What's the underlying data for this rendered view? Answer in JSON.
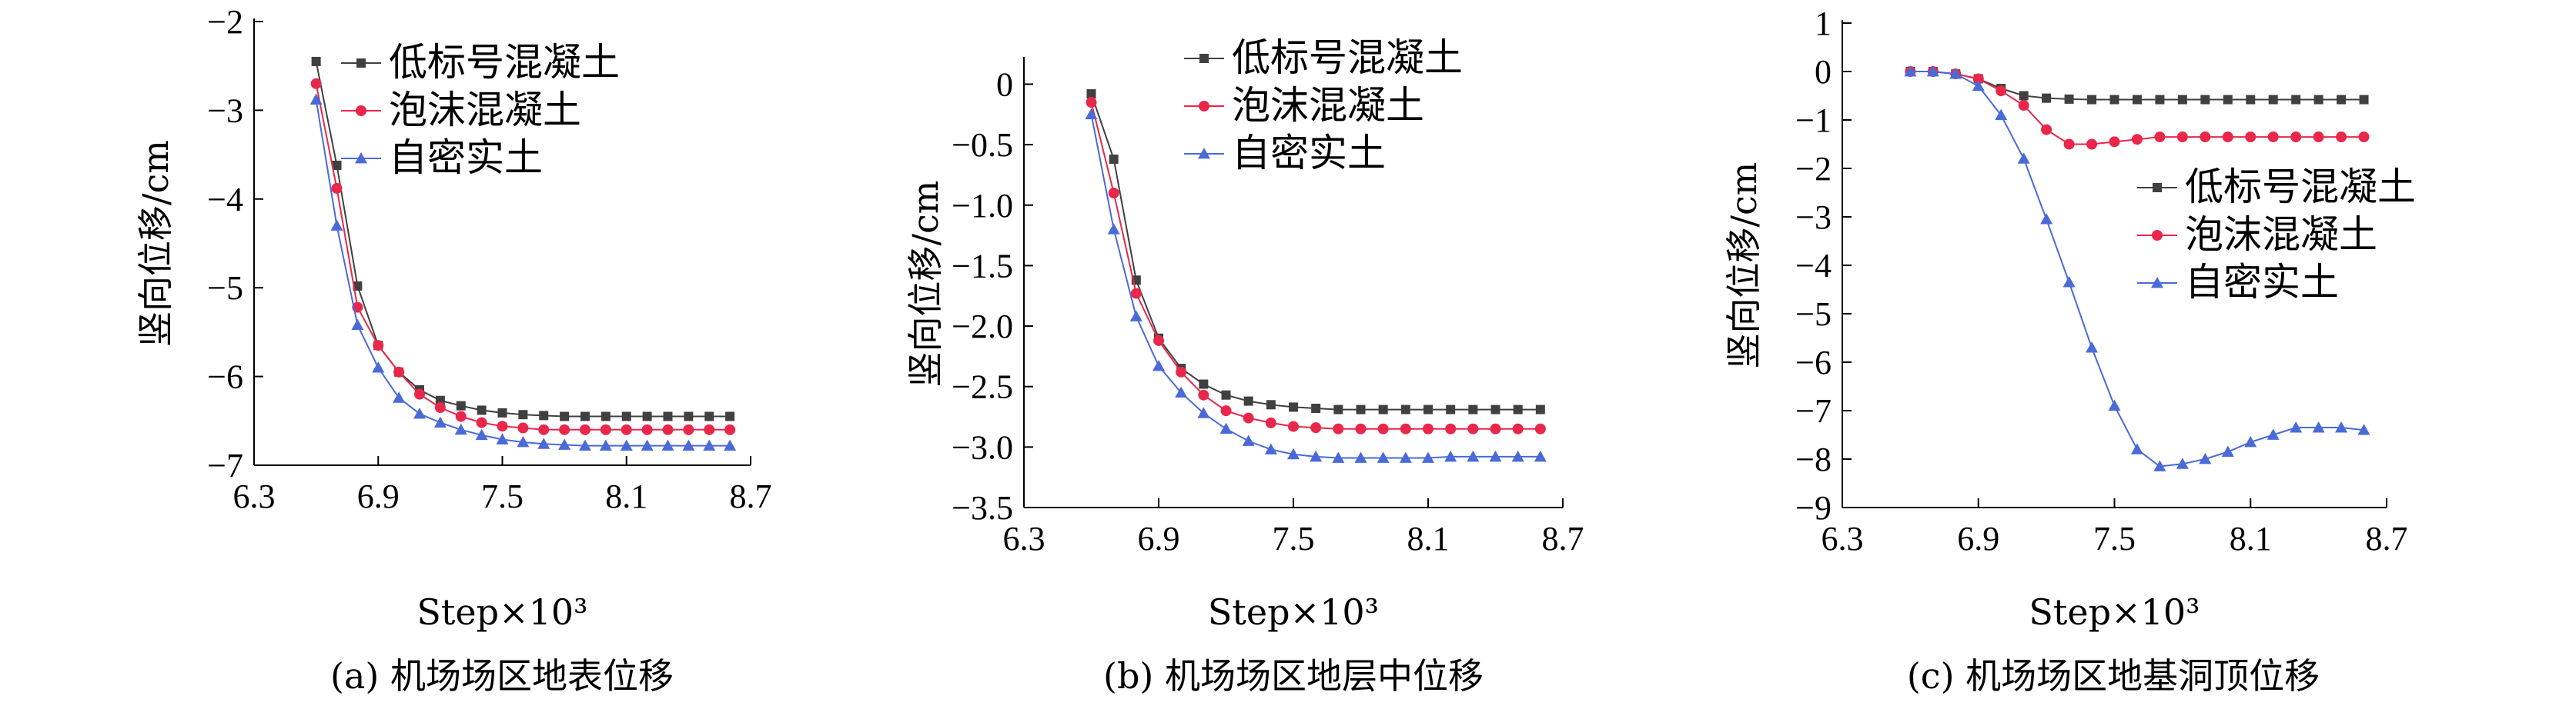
{
  "colors": {
    "series": [
      "#404040",
      "#e8274b",
      "#4a6ad8"
    ],
    "axis": "#000000"
  },
  "chart_data": [
    {
      "type": "line",
      "caption": "(a) 机场场区地表位移",
      "xlabel": "Step×10³",
      "ylabel": "竖向位移/cm",
      "xlim": [
        6.3,
        8.7
      ],
      "ylim": [
        -7,
        -2
      ],
      "xticks": [
        "6.3",
        "6.9",
        "7.5",
        "8.1",
        "8.7"
      ],
      "yticks": [
        "−2",
        "−3",
        "−4",
        "−5",
        "−6",
        "−7"
      ],
      "legend_position": "top-right",
      "series": [
        {
          "name": "低标号混凝土",
          "marker": "square",
          "x": [
            6.6,
            6.7,
            6.8,
            6.9,
            7.0,
            7.1,
            7.2,
            7.3,
            7.4,
            7.5,
            7.6,
            7.7,
            7.8,
            7.9,
            8.0,
            8.1,
            8.2,
            8.3,
            8.4,
            8.5,
            8.6
          ],
          "y": [
            -2.45,
            -3.62,
            -4.98,
            -5.65,
            -5.95,
            -6.15,
            -6.27,
            -6.33,
            -6.38,
            -6.41,
            -6.43,
            -6.44,
            -6.45,
            -6.45,
            -6.45,
            -6.45,
            -6.45,
            -6.45,
            -6.45,
            -6.45,
            -6.45
          ]
        },
        {
          "name": "泡沫混凝土",
          "marker": "circle",
          "x": [
            6.6,
            6.7,
            6.8,
            6.9,
            7.0,
            7.1,
            7.2,
            7.3,
            7.4,
            7.5,
            7.6,
            7.7,
            7.8,
            7.9,
            8.0,
            8.1,
            8.2,
            8.3,
            8.4,
            8.5,
            8.6
          ],
          "y": [
            -2.7,
            -3.88,
            -5.22,
            -5.65,
            -5.95,
            -6.2,
            -6.35,
            -6.45,
            -6.52,
            -6.56,
            -6.58,
            -6.6,
            -6.6,
            -6.6,
            -6.6,
            -6.6,
            -6.6,
            -6.6,
            -6.6,
            -6.6,
            -6.6
          ]
        },
        {
          "name": "自密实土",
          "marker": "triangle",
          "x": [
            6.6,
            6.7,
            6.8,
            6.9,
            7.0,
            7.1,
            7.2,
            7.3,
            7.4,
            7.5,
            7.6,
            7.7,
            7.8,
            7.9,
            8.0,
            8.1,
            8.2,
            8.3,
            8.4,
            8.5,
            8.6
          ],
          "y": [
            -2.88,
            -4.3,
            -5.42,
            -5.9,
            -6.24,
            -6.42,
            -6.52,
            -6.6,
            -6.66,
            -6.71,
            -6.74,
            -6.76,
            -6.77,
            -6.78,
            -6.78,
            -6.78,
            -6.78,
            -6.78,
            -6.78,
            -6.78,
            -6.78
          ]
        }
      ]
    },
    {
      "type": "line",
      "caption": "(b) 机场场区地层中位移",
      "xlabel": "Step×10³",
      "ylabel": "竖向位移/cm",
      "xlim": [
        6.3,
        8.7
      ],
      "ylim": [
        -3.5,
        0.2
      ],
      "xticks": [
        "6.3",
        "6.9",
        "7.5",
        "8.1",
        "8.7"
      ],
      "yticks": [
        "0",
        "−0.5",
        "−1.0",
        "−1.5",
        "−2.0",
        "−2.5",
        "−3.0",
        "−3.5"
      ],
      "legend_position": "top-right",
      "series": [
        {
          "name": "低标号混凝土",
          "marker": "square",
          "x": [
            6.6,
            6.7,
            6.8,
            6.9,
            7.0,
            7.1,
            7.2,
            7.3,
            7.4,
            7.5,
            7.6,
            7.7,
            7.8,
            7.9,
            8.0,
            8.1,
            8.2,
            8.3,
            8.4,
            8.5,
            8.6
          ],
          "y": [
            -0.08,
            -0.62,
            -1.62,
            -2.1,
            -2.35,
            -2.48,
            -2.57,
            -2.62,
            -2.65,
            -2.67,
            -2.68,
            -2.69,
            -2.69,
            -2.69,
            -2.69,
            -2.69,
            -2.69,
            -2.69,
            -2.69,
            -2.69,
            -2.69
          ]
        },
        {
          "name": "泡沫混凝土",
          "marker": "circle",
          "x": [
            6.6,
            6.7,
            6.8,
            6.9,
            7.0,
            7.1,
            7.2,
            7.3,
            7.4,
            7.5,
            7.6,
            7.7,
            7.8,
            7.9,
            8.0,
            8.1,
            8.2,
            8.3,
            8.4,
            8.5,
            8.6
          ],
          "y": [
            -0.15,
            -0.9,
            -1.73,
            -2.12,
            -2.38,
            -2.57,
            -2.7,
            -2.76,
            -2.8,
            -2.83,
            -2.84,
            -2.85,
            -2.85,
            -2.85,
            -2.85,
            -2.85,
            -2.85,
            -2.85,
            -2.85,
            -2.85,
            -2.85
          ]
        },
        {
          "name": "自密实土",
          "marker": "triangle",
          "x": [
            6.6,
            6.7,
            6.8,
            6.9,
            7.0,
            7.1,
            7.2,
            7.3,
            7.4,
            7.5,
            7.6,
            7.7,
            7.8,
            7.9,
            8.0,
            8.1,
            8.2,
            8.3,
            8.4,
            8.5,
            8.6
          ],
          "y": [
            -0.25,
            -1.2,
            -1.92,
            -2.33,
            -2.55,
            -2.72,
            -2.85,
            -2.95,
            -3.02,
            -3.06,
            -3.08,
            -3.09,
            -3.09,
            -3.09,
            -3.09,
            -3.09,
            -3.08,
            -3.08,
            -3.08,
            -3.08,
            -3.08
          ]
        }
      ]
    },
    {
      "type": "line",
      "caption": "(c) 机场场区地基洞顶位移",
      "xlabel": "Step×10³",
      "ylabel": "竖向位移/cm",
      "xlim": [
        6.3,
        8.7
      ],
      "ylim": [
        -9,
        1
      ],
      "xticks": [
        "6.3",
        "6.9",
        "7.5",
        "8.1",
        "8.7"
      ],
      "yticks": [
        "1",
        "0",
        "−1",
        "−2",
        "−3",
        "−4",
        "−5",
        "−6",
        "−7",
        "−8",
        "−9"
      ],
      "legend_position": "right",
      "series": [
        {
          "name": "低标号混凝土",
          "marker": "square",
          "x": [
            6.6,
            6.7,
            6.8,
            6.9,
            7.0,
            7.1,
            7.2,
            7.3,
            7.4,
            7.5,
            7.6,
            7.7,
            7.8,
            7.9,
            8.0,
            8.1,
            8.2,
            8.3,
            8.4,
            8.5,
            8.6
          ],
          "y": [
            0,
            0,
            -0.05,
            -0.15,
            -0.35,
            -0.5,
            -0.55,
            -0.57,
            -0.58,
            -0.58,
            -0.58,
            -0.58,
            -0.58,
            -0.58,
            -0.58,
            -0.58,
            -0.58,
            -0.58,
            -0.58,
            -0.58,
            -0.58
          ]
        },
        {
          "name": "泡沫混凝土",
          "marker": "circle",
          "x": [
            6.6,
            6.7,
            6.8,
            6.9,
            7.0,
            7.1,
            7.2,
            7.3,
            7.4,
            7.5,
            7.6,
            7.7,
            7.8,
            7.9,
            8.0,
            8.1,
            8.2,
            8.3,
            8.4,
            8.5,
            8.6
          ],
          "y": [
            0,
            0,
            -0.05,
            -0.15,
            -0.4,
            -0.7,
            -1.2,
            -1.5,
            -1.5,
            -1.45,
            -1.4,
            -1.35,
            -1.35,
            -1.35,
            -1.35,
            -1.35,
            -1.35,
            -1.35,
            -1.35,
            -1.35,
            -1.35
          ]
        },
        {
          "name": "自密实土",
          "marker": "triangle",
          "x": [
            6.6,
            6.7,
            6.8,
            6.9,
            7.0,
            7.1,
            7.2,
            7.3,
            7.4,
            7.5,
            7.6,
            7.7,
            7.8,
            7.9,
            8.0,
            8.1,
            8.2,
            8.3,
            8.4,
            8.5,
            8.6
          ],
          "y": [
            0,
            0,
            -0.05,
            -0.3,
            -0.9,
            -1.8,
            -3.05,
            -4.35,
            -5.7,
            -6.9,
            -7.8,
            -8.15,
            -8.1,
            -8.0,
            -7.85,
            -7.65,
            -7.5,
            -7.35,
            -7.35,
            -7.35,
            -7.4
          ]
        }
      ]
    }
  ]
}
